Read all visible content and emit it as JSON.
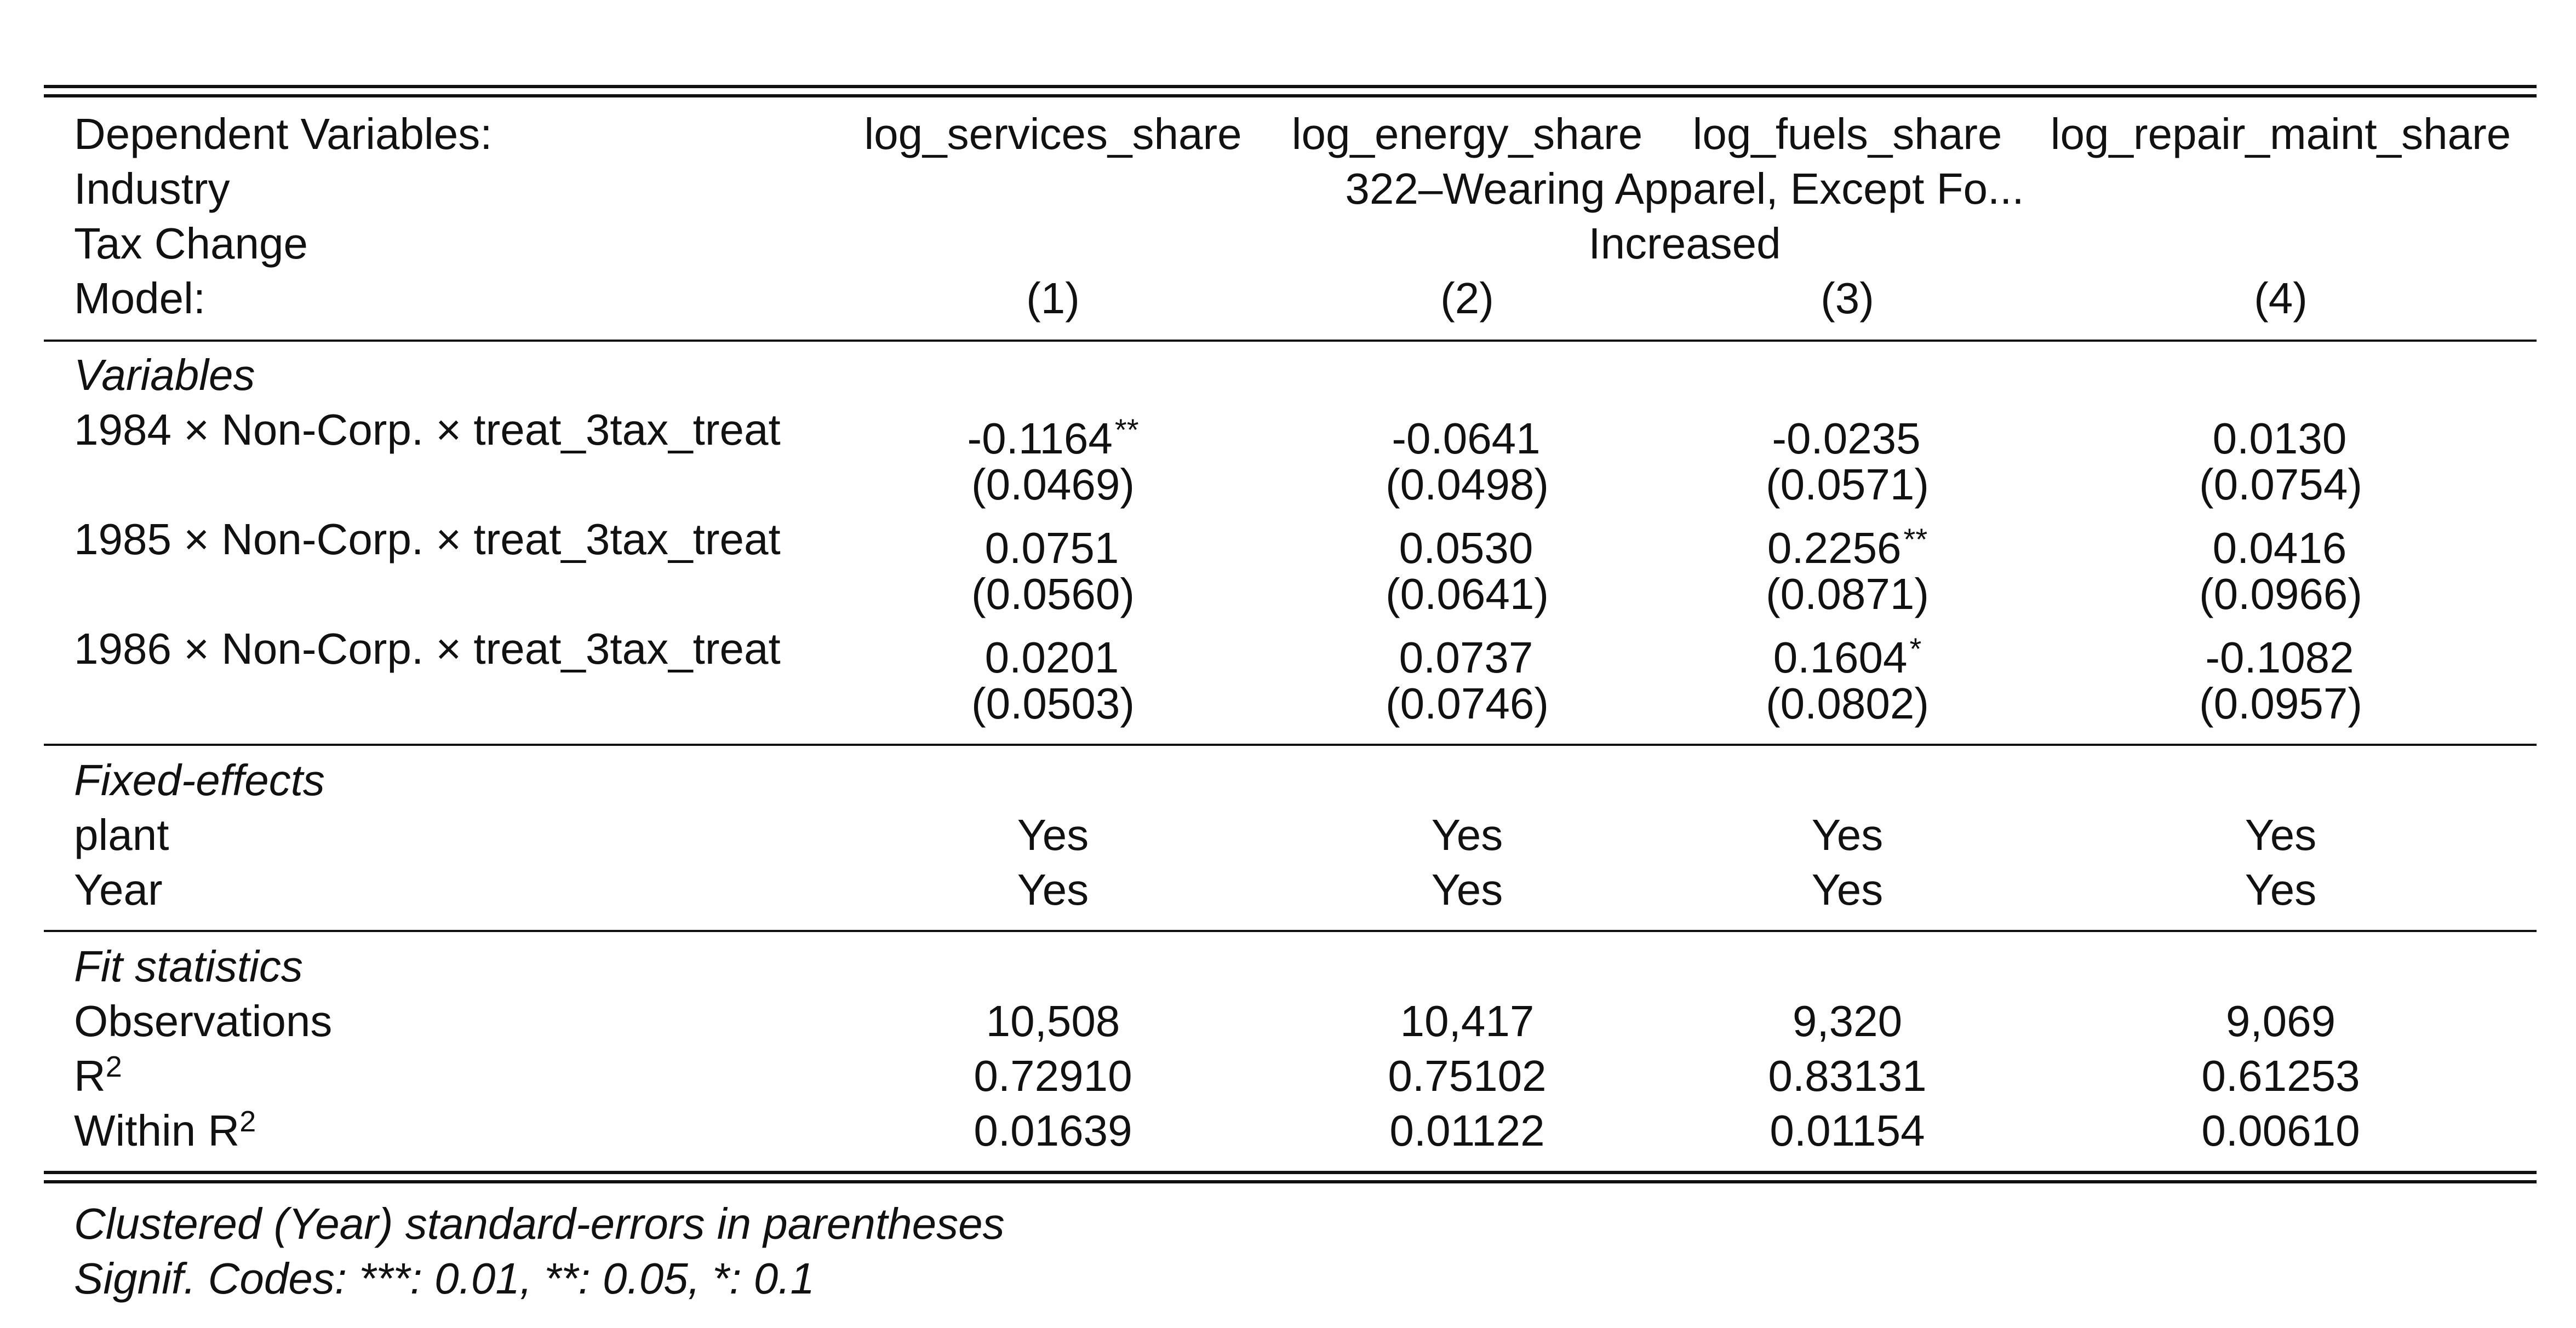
{
  "header": {
    "dep_vars_label": "Dependent Variables:",
    "dep_vars": [
      "log_services_share",
      "log_energy_share",
      "log_fuels_share",
      "log_repair_maint_share"
    ],
    "industry_label": "Industry",
    "industry_value": "322–Wearing Apparel, Except Fo...",
    "tax_change_label": "Tax Change",
    "tax_change_value": "Increased",
    "model_label": "Model:",
    "models": [
      "(1)",
      "(2)",
      "(3)",
      "(4)"
    ]
  },
  "variables": {
    "section_title": "Variables",
    "rows": [
      {
        "label": "1984 × Non-Corp. × treat_3tax_treat",
        "coefs": [
          "-0.1164",
          "-0.0641",
          "-0.0235",
          "0.0130"
        ],
        "stars": [
          "**",
          "",
          "",
          ""
        ],
        "ses": [
          "(0.0469)",
          "(0.0498)",
          "(0.0571)",
          "(0.0754)"
        ]
      },
      {
        "label": "1985 × Non-Corp. × treat_3tax_treat",
        "coefs": [
          "0.0751",
          "0.0530",
          "0.2256",
          "0.0416"
        ],
        "stars": [
          "",
          "",
          "**",
          ""
        ],
        "ses": [
          "(0.0560)",
          "(0.0641)",
          "(0.0871)",
          "(0.0966)"
        ]
      },
      {
        "label": "1986 × Non-Corp. × treat_3tax_treat",
        "coefs": [
          "0.0201",
          "0.0737",
          "0.1604",
          "-0.1082"
        ],
        "stars": [
          "",
          "",
          "*",
          ""
        ],
        "ses": [
          "(0.0503)",
          "(0.0746)",
          "(0.0802)",
          "(0.0957)"
        ]
      }
    ]
  },
  "fixed_effects": {
    "section_title": "Fixed-effects",
    "rows": [
      {
        "label": "plant",
        "values": [
          "Yes",
          "Yes",
          "Yes",
          "Yes"
        ]
      },
      {
        "label": "Year",
        "values": [
          "Yes",
          "Yes",
          "Yes",
          "Yes"
        ]
      }
    ]
  },
  "fit_statistics": {
    "section_title": "Fit statistics",
    "observations": {
      "label": "Observations",
      "values": [
        "10,508",
        "10,417",
        "9,320",
        "9,069"
      ]
    },
    "r2": {
      "label": "R",
      "sup": "2",
      "values": [
        "0.72910",
        "0.75102",
        "0.83131",
        "0.61253"
      ]
    },
    "within_r2": {
      "label": "Within R",
      "sup": "2",
      "values": [
        "0.01639",
        "0.01122",
        "0.01154",
        "0.00610"
      ]
    }
  },
  "footnotes": {
    "clustered": "Clustered (Year) standard-errors in parentheses",
    "signif": "Signif. Codes: ***: 0.01, **: 0.05, *: 0.1"
  }
}
